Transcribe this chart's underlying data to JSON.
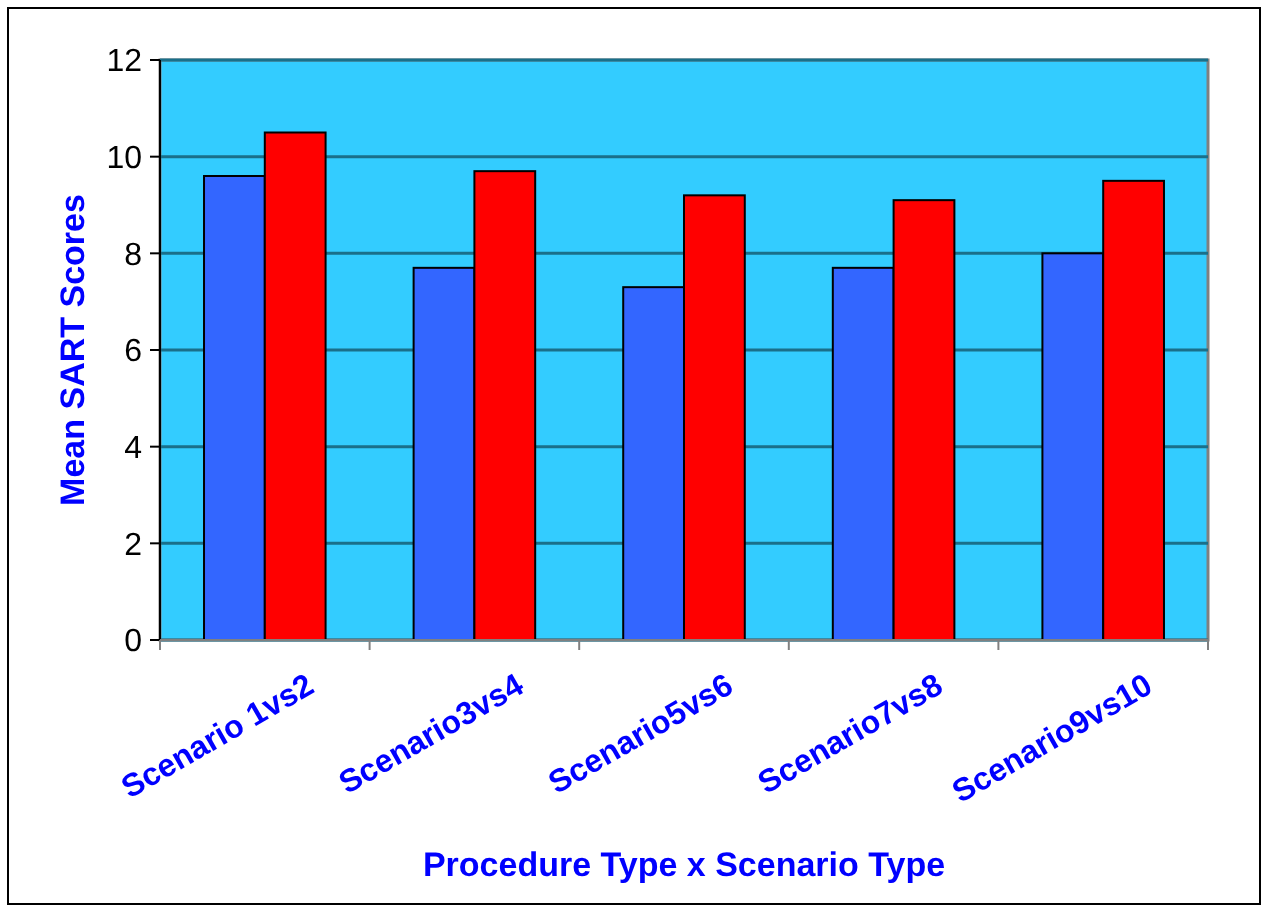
{
  "chart_data": {
    "type": "bar",
    "xlabel": "Procedure Type x Scenario Type",
    "ylabel": "Mean SART Scores",
    "categories": [
      "Scenario 1vs2",
      "Scenario3vs4",
      "Scenario5vs6",
      "Scenario7vs8",
      "Scenario9vs10"
    ],
    "series": [
      {
        "color": "#3366ff",
        "values": [
          9.6,
          7.7,
          7.3,
          7.7,
          8.0
        ]
      },
      {
        "color": "#ff0000",
        "values": [
          10.5,
          9.7,
          9.2,
          9.1,
          9.5
        ]
      }
    ],
    "ylim": [
      0,
      12
    ],
    "yticks": [
      0,
      2,
      4,
      6,
      8,
      10,
      12
    ],
    "grid": "y"
  }
}
